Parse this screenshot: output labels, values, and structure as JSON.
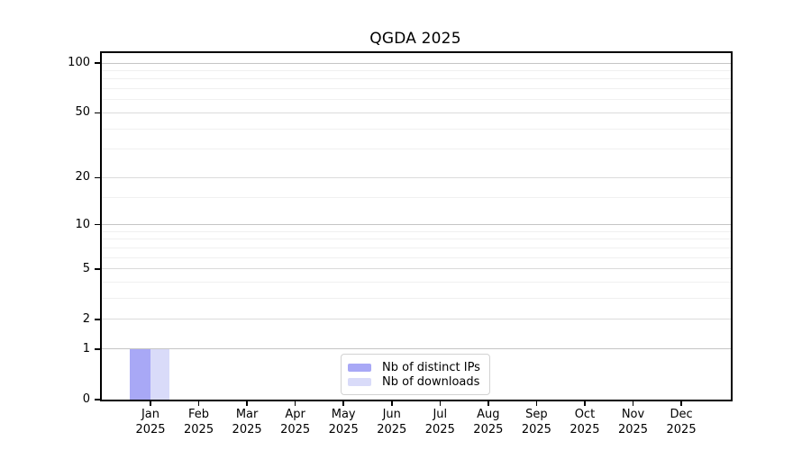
{
  "chart_data": {
    "type": "bar",
    "title": "QGDA 2025",
    "x": {
      "categories": [
        "Jan",
        "Feb",
        "Mar",
        "Apr",
        "May",
        "Jun",
        "Jul",
        "Aug",
        "Sep",
        "Oct",
        "Nov",
        "Dec"
      ],
      "year_label": "2025"
    },
    "y_axis": {
      "scale": "log1p",
      "tick_values": [
        0,
        1,
        2,
        5,
        10,
        20,
        50,
        100
      ],
      "minor_gridline_values": [
        3,
        4,
        6,
        7,
        8,
        9,
        15,
        30,
        40,
        60,
        70,
        80,
        90
      ],
      "range": [
        0,
        115
      ],
      "grid": true
    },
    "series": [
      {
        "name": "Nb of distinct IPs",
        "color": "#a8a8f6",
        "values": [
          1,
          0,
          0,
          0,
          0,
          0,
          0,
          0,
          0,
          0,
          0,
          0
        ]
      },
      {
        "name": "Nb of downloads",
        "color": "#d9dbf9",
        "values": [
          1,
          0,
          0,
          0,
          0,
          0,
          0,
          0,
          0,
          0,
          0,
          0
        ]
      }
    ],
    "legend": {
      "position": "bottom-center"
    }
  }
}
